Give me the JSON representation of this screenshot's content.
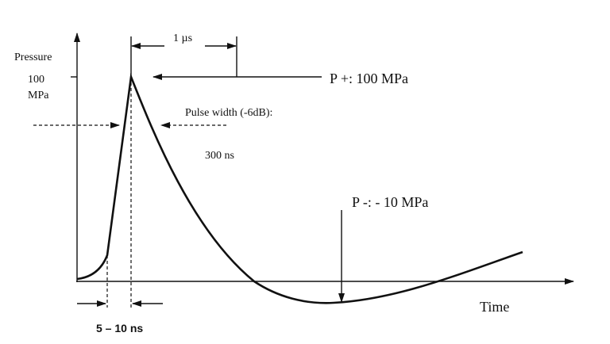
{
  "labels": {
    "y_axis": "Pressure",
    "peak_value": "100",
    "peak_unit": "MPa",
    "period": "1 µs",
    "p_plus": "P +: 100 MPa",
    "pulse_width": "Pulse width (-6dB):",
    "pulse_width_value": "300 ns",
    "p_minus": "P -: - 10 MPa",
    "x_axis": "Time",
    "rise_time": "5 – 10 ns"
  }
}
